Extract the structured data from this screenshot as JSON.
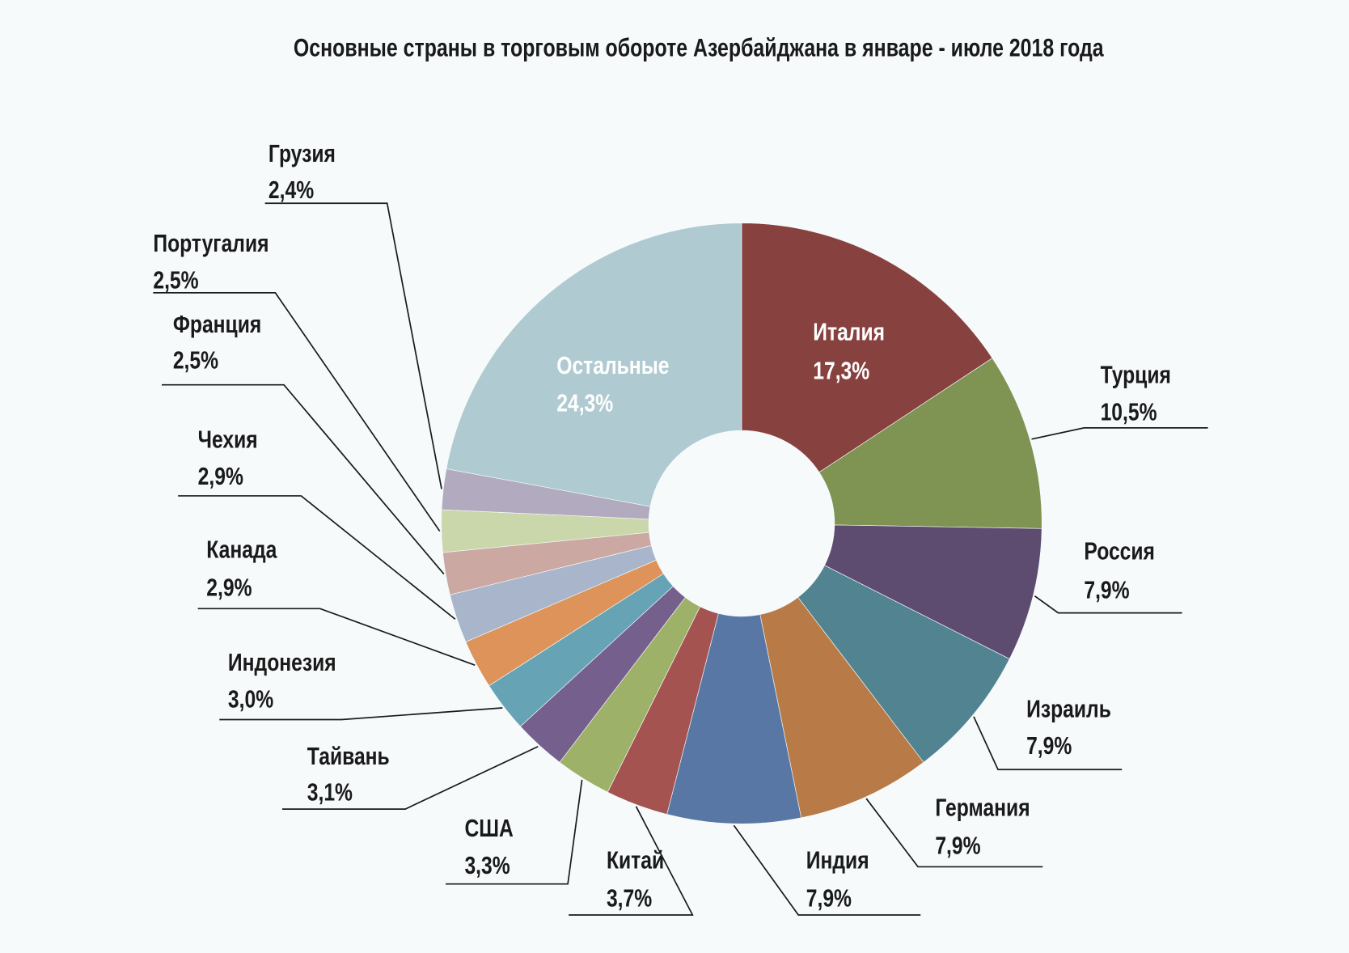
{
  "chart_data": {
    "type": "pie",
    "title": "Основные страны в торговым обороте Азербайджана в январе - июле 2018 года",
    "donut": true,
    "slices": [
      {
        "label": "Италия",
        "value": 17.3,
        "value_label": "17,3%",
        "color": "#87413f"
      },
      {
        "label": "Турция",
        "value": 10.5,
        "value_label": "10,5%",
        "color": "#7f9353"
      },
      {
        "label": "Россия",
        "value": 7.9,
        "value_label": "7,9%",
        "color": "#5e4b70"
      },
      {
        "label": "Израиль",
        "value": 7.9,
        "value_label": "7,9%",
        "color": "#518390"
      },
      {
        "label": "Германия",
        "value": 7.9,
        "value_label": "7,9%",
        "color": "#b87a46"
      },
      {
        "label": "Индия",
        "value": 7.9,
        "value_label": "7,9%",
        "color": "#5877a5"
      },
      {
        "label": "Китай",
        "value": 3.7,
        "value_label": "3,7%",
        "color": "#a45350"
      },
      {
        "label": "США",
        "value": 3.3,
        "value_label": "3,3%",
        "color": "#9db268"
      },
      {
        "label": "Тайвань",
        "value": 3.1,
        "value_label": "3,1%",
        "color": "#755f8c"
      },
      {
        "label": "Индонезия",
        "value": 3.0,
        "value_label": "3,0%",
        "color": "#66a3b5"
      },
      {
        "label": "Канада",
        "value": 2.9,
        "value_label": "2,9%",
        "color": "#de935a"
      },
      {
        "label": "Чехия",
        "value": 2.9,
        "value_label": "2,9%",
        "color": "#a9b5ca"
      },
      {
        "label": "Франция",
        "value": 2.5,
        "value_label": "2,5%",
        "color": "#cba8a2"
      },
      {
        "label": "Португалия",
        "value": 2.5,
        "value_label": "2,5%",
        "color": "#c9d7aa"
      },
      {
        "label": "Грузия",
        "value": 2.4,
        "value_label": "2,4%",
        "color": "#b2abbf"
      },
      {
        "label": "Остальные",
        "value": 24.3,
        "value_label": "24,3%",
        "color": "#afcad1"
      }
    ],
    "legend": "none"
  }
}
